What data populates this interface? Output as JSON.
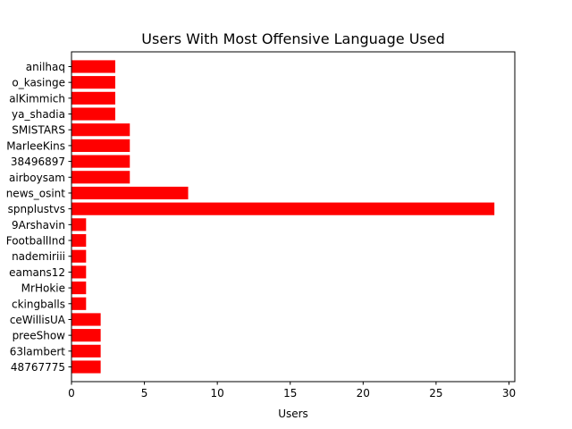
{
  "chart_data": {
    "type": "bar",
    "orientation": "horizontal",
    "title": "Users With Most Offensive Language Used",
    "xlabel": "Users",
    "ylabel": "",
    "xlim": [
      0,
      30.4
    ],
    "xticks": [
      0,
      5,
      10,
      15,
      20,
      25,
      30
    ],
    "grid": false,
    "bar_color": "#ff0000",
    "categories": [
      "anilhaq",
      "o_kasinge",
      "alKimmich",
      "ya_shadia",
      "SMISTARS",
      "MarleeKins",
      "38496897",
      "airboysam",
      "news_osint",
      "spnplustvs",
      "9Arshavin",
      "FootballInd",
      "nademiriii",
      "eamans12",
      "MrHokie",
      "ckingballs",
      "ceWillisUA",
      "preeShow",
      "63lambert",
      "48767775"
    ],
    "values": [
      3,
      3,
      3,
      3,
      4,
      4,
      4,
      4,
      8,
      29,
      1,
      1,
      1,
      1,
      1,
      1,
      2,
      2,
      2,
      2
    ]
  }
}
